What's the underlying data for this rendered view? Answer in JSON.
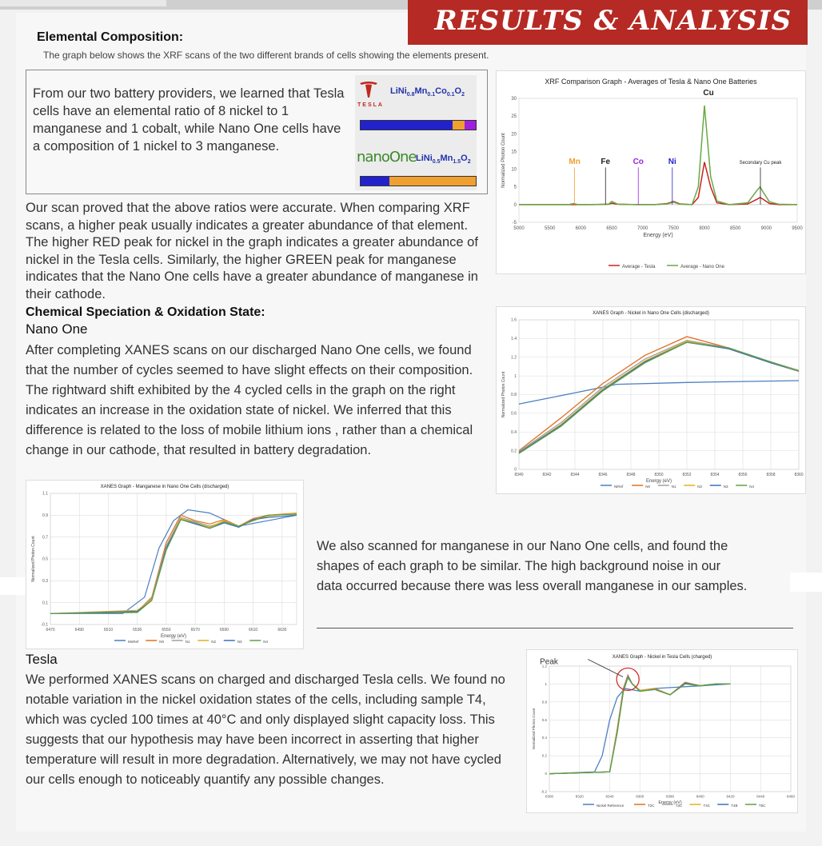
{
  "header": {
    "title": "RESULTS & ANALYSIS"
  },
  "section1": {
    "heading": "Elemental Composition:",
    "caption": "The graph below shows the XRF scans of the two different brands of cells showing the elements present.",
    "box_text": "From our two battery providers, we learned that Tesla  cells have an elemental  ratio of 8 nickel to 1 manganese and 1 cobalt, while Nano One cells have a composition of 1 nickel to 3 manganese.",
    "tesla_label": "TESLA",
    "nano_label": "nanoOne",
    "tesla_formula": {
      "a": "LiNi",
      "s1": "0.8",
      "b": "Mn",
      "s2": "0.1",
      "c": "Co",
      "s3": "0.1",
      "d": "O",
      "s4": "2"
    },
    "nano_formula": {
      "a": "LiNi",
      "s1": "0.5",
      "b": "Mn",
      "s2": "1.5",
      "d": "O",
      "s4": "2"
    },
    "tesla_bar": {
      "ni": 0.8,
      "mn": 0.1,
      "co": 0.1
    },
    "nano_bar": {
      "ni": 0.25,
      "mn": 0.75
    },
    "colors": {
      "ni": "#2222cc",
      "mn": "#f0a030",
      "co": "#a020e0",
      "red": "#b52a24"
    },
    "paragraph": "Our scan proved that the above ratios were accurate. When comparing XRF scans, a higher peak usually indicates a greater abundance of that element. The higher RED peak for nickel in the graph indicates a greater abundance of nickel in the Tesla cells. Similarly, the higher GREEN peak for manganese indicates that the Nano One cells have a greater abundance of manganese in their cathode."
  },
  "section2": {
    "heading": "Chemical Speciation & Oxidation State:",
    "subheading": "Nano One",
    "paragraph": "After completing XANES scans on our discharged Nano One cells, we found that the number of cycles seemed to have slight effects on their composition.  The rightward shift exhibited by the 4 cycled cells in the graph on the right indicates an increase in the oxidation state of nickel. We inferred that this difference is related to the loss of mobile lithium ions , rather than a chemical change in our cathode, that resulted in battery degradation.",
    "manganese_text": "We also scanned for manganese in our Nano One cells, and found the shapes of each graph to be similar. The high background noise in our data occurred because there was less overall manganese in our samples."
  },
  "section3": {
    "heading": "Tesla",
    "paragraph": "We performed XANES scans on charged and discharged Tesla cells.  We found no notable variation in the nickel oxidation states of the cells, including sample T4, which was cycled 100 times at 40°C and only displayed slight capacity loss. This suggests that our hypothesis may have been incorrect in asserting that higher temperature will result in more degradation. Alternatively, we may not have cycled our cells enough to noticeably quantify any possible changes."
  },
  "chart_data": [
    {
      "type": "line",
      "title": "XRF Comparison Graph - Averages of Tesla & Nano One Batteries",
      "xlabel": "Energy (eV)",
      "ylabel": "Normalized Photon Count",
      "xlim": [
        5000,
        9500
      ],
      "ylim": [
        -5,
        30
      ],
      "xticks": [
        5000,
        5500,
        6000,
        6500,
        7000,
        7500,
        8000,
        8500,
        9000,
        9500
      ],
      "yticks": [
        -5,
        0,
        5,
        10,
        15,
        20,
        25,
        30
      ],
      "grid": false,
      "legend_position": "bottom",
      "series": [
        {
          "name": "Average - Tesla",
          "color": "#cc2222",
          "x": [
            5000,
            5800,
            6200,
            6450,
            6500,
            6600,
            6900,
            7200,
            7400,
            7500,
            7600,
            7800,
            7900,
            8000,
            8100,
            8200,
            8400,
            8700,
            8850,
            8900,
            8950,
            9050,
            9200,
            9500
          ],
          "y": [
            0,
            0,
            0,
            0.1,
            0.4,
            0.1,
            0,
            0,
            0.3,
            0.9,
            0.2,
            0,
            2,
            12,
            5,
            0.5,
            0,
            0.2,
            1.5,
            2,
            1.5,
            0.3,
            0,
            0
          ]
        },
        {
          "name": "Average - Nano One",
          "color": "#66aa44",
          "x": [
            5000,
            5800,
            5890,
            5950,
            6100,
            6450,
            6500,
            6600,
            6900,
            7200,
            7400,
            7500,
            7600,
            7800,
            7900,
            8000,
            8100,
            8200,
            8400,
            8700,
            8850,
            8900,
            8950,
            9050,
            9200,
            9500
          ],
          "y": [
            0,
            0,
            0.3,
            0,
            0,
            0.1,
            0.9,
            0.1,
            0,
            0,
            0.2,
            0.7,
            0.1,
            0,
            5,
            28,
            8,
            1,
            0,
            0.5,
            4,
            5,
            3.5,
            0.8,
            0.1,
            0
          ]
        }
      ],
      "annotations": [
        {
          "label": "Mn",
          "x": 5900,
          "color": "#f0a030"
        },
        {
          "label": "Fe",
          "x": 6400,
          "color": "#222222"
        },
        {
          "label": "Co",
          "x": 6930,
          "color": "#a020e0"
        },
        {
          "label": "Ni",
          "x": 7480,
          "color": "#2222cc"
        },
        {
          "label": "Cu",
          "x": 8040,
          "color": "#222222"
        },
        {
          "label": "Secondary Cu peak",
          "x": 8905,
          "color": "#222222"
        }
      ]
    },
    {
      "type": "line",
      "title": "XANES Graph - Nickel in Nano One Cells (discharged)",
      "xlabel": "Energy (eV)",
      "ylabel": "Normalized Photon Count",
      "xlim": [
        8340,
        8360
      ],
      "ylim": [
        0,
        1.6
      ],
      "xticks": [
        8340,
        8342,
        8344,
        8346,
        8348,
        8350,
        8352,
        8354,
        8356,
        8358,
        8360
      ],
      "yticks": [
        0,
        0.2,
        0.4,
        0.6,
        0.8,
        1.0,
        1.2,
        1.4,
        1.6
      ],
      "grid": true,
      "legend_position": "bottom",
      "series": [
        {
          "name": "NiRef",
          "color": "#4a7fc1",
          "x": [
            8340,
            8344,
            8347,
            8352,
            8356,
            8360
          ],
          "y": [
            0.7,
            0.82,
            0.91,
            0.93,
            0.94,
            0.95
          ]
        },
        {
          "name": "N0",
          "color": "#e07020",
          "x": [
            8340,
            8343,
            8346,
            8349,
            8352,
            8355,
            8358,
            8360
          ],
          "y": [
            0.2,
            0.55,
            0.92,
            1.22,
            1.42,
            1.3,
            1.14,
            1.05
          ]
        },
        {
          "name": "N1",
          "color": "#a0a0a0",
          "x": [
            8340,
            8343,
            8346,
            8349,
            8352,
            8355,
            8358,
            8360
          ],
          "y": [
            0.19,
            0.5,
            0.88,
            1.18,
            1.38,
            1.3,
            1.15,
            1.06
          ]
        },
        {
          "name": "N2",
          "color": "#e0b020",
          "x": [
            8340,
            8343,
            8346,
            8349,
            8352,
            8355,
            8358,
            8360
          ],
          "y": [
            0.18,
            0.48,
            0.86,
            1.16,
            1.37,
            1.29,
            1.14,
            1.05
          ]
        },
        {
          "name": "N3",
          "color": "#3a70c0",
          "x": [
            8340,
            8343,
            8346,
            8349,
            8352,
            8355,
            8358,
            8360
          ],
          "y": [
            0.18,
            0.47,
            0.85,
            1.15,
            1.36,
            1.29,
            1.14,
            1.05
          ]
        },
        {
          "name": "N4",
          "color": "#60a040",
          "x": [
            8340,
            8343,
            8346,
            8349,
            8352,
            8355,
            8358,
            8360
          ],
          "y": [
            0.17,
            0.46,
            0.84,
            1.14,
            1.36,
            1.3,
            1.15,
            1.05
          ]
        }
      ]
    },
    {
      "type": "line",
      "title": "XANES Graph - Manganese in Nano One Cells (discharged)",
      "xlabel": "Energy (eV)",
      "ylabel": "Normalized Photon Count",
      "xlim": [
        6470,
        6640
      ],
      "ylim": [
        -0.1,
        1.1
      ],
      "xticks": [
        6470,
        6490,
        6510,
        6530,
        6550,
        6570,
        6590,
        6610,
        6630
      ],
      "yticks": [
        -0.1,
        0.1,
        0.3,
        0.5,
        0.7,
        0.9,
        1.1
      ],
      "grid": true,
      "legend_position": "bottom",
      "series": [
        {
          "name": "MnRef",
          "color": "#4a7fc1",
          "x": [
            6470,
            6520,
            6535,
            6545,
            6555,
            6565,
            6580,
            6600,
            6620,
            6640
          ],
          "y": [
            0,
            0,
            0.15,
            0.6,
            0.85,
            0.95,
            0.92,
            0.8,
            0.85,
            0.9
          ]
        },
        {
          "name": "N0",
          "color": "#e07020",
          "x": [
            6470,
            6530,
            6540,
            6550,
            6560,
            6570,
            6580,
            6590,
            6600,
            6610,
            6620,
            6640
          ],
          "y": [
            0,
            0.02,
            0.15,
            0.65,
            0.9,
            0.85,
            0.82,
            0.86,
            0.8,
            0.87,
            0.9,
            0.92
          ]
        },
        {
          "name": "N1",
          "color": "#a0a0a0",
          "x": [
            6470,
            6530,
            6540,
            6550,
            6560,
            6570,
            6580,
            6590,
            6600,
            6610,
            6620,
            6640
          ],
          "y": [
            0,
            0.02,
            0.14,
            0.62,
            0.88,
            0.84,
            0.8,
            0.84,
            0.79,
            0.86,
            0.9,
            0.91
          ]
        },
        {
          "name": "N2",
          "color": "#e0b020",
          "x": [
            6470,
            6530,
            6540,
            6550,
            6560,
            6570,
            6580,
            6590,
            6600,
            6610,
            6620,
            6640
          ],
          "y": [
            0,
            0.03,
            0.13,
            0.6,
            0.87,
            0.83,
            0.79,
            0.85,
            0.8,
            0.85,
            0.89,
            0.92
          ]
        },
        {
          "name": "N3",
          "color": "#3a70c0",
          "x": [
            6470,
            6530,
            6540,
            6550,
            6560,
            6570,
            6580,
            6590,
            6600,
            6610,
            6620,
            6640
          ],
          "y": [
            0,
            0.02,
            0.12,
            0.6,
            0.86,
            0.82,
            0.78,
            0.83,
            0.79,
            0.86,
            0.88,
            0.9
          ]
        },
        {
          "name": "N4",
          "color": "#60a040",
          "x": [
            6470,
            6530,
            6540,
            6550,
            6560,
            6570,
            6580,
            6590,
            6600,
            6610,
            6620,
            6640
          ],
          "y": [
            0,
            0.01,
            0.12,
            0.58,
            0.86,
            0.83,
            0.78,
            0.84,
            0.8,
            0.85,
            0.9,
            0.91
          ]
        }
      ]
    },
    {
      "type": "line",
      "title": "XANES Graph - Nickel in Tesla Cells (charged)",
      "xlabel": "Energy (eV)",
      "ylabel": "Normalized Photon Count",
      "xlim": [
        8300,
        8460
      ],
      "ylim": [
        -0.2,
        1.2
      ],
      "xticks": [
        8300,
        8320,
        8340,
        8360,
        8380,
        8400,
        8420,
        8440,
        8460
      ],
      "yticks": [
        -0.2,
        0,
        0.2,
        0.4,
        0.6,
        0.8,
        1,
        1.2
      ],
      "grid": true,
      "legend_position": "bottom",
      "annotations": [
        {
          "label": "Peak",
          "x": 8352,
          "y": 1.08
        }
      ],
      "series": [
        {
          "name": "Nickel Reference",
          "color": "#4a7fc1",
          "x": [
            8300,
            8330,
            8335,
            8340,
            8345,
            8350,
            8360,
            8370,
            8380,
            8400,
            8420
          ],
          "y": [
            0,
            0.02,
            0.2,
            0.6,
            0.85,
            0.95,
            0.92,
            0.95,
            0.96,
            0.98,
            1.0
          ]
        },
        {
          "name": "T2C",
          "color": "#e07020",
          "x": [
            8300,
            8340,
            8345,
            8349,
            8352,
            8355,
            8360,
            8370,
            8380,
            8390,
            8400,
            8410,
            8420
          ],
          "y": [
            0,
            0.02,
            0.5,
            0.95,
            1.1,
            1.0,
            0.93,
            0.95,
            0.88,
            1.02,
            0.98,
            1.0,
            1.0
          ]
        },
        {
          "name": "T3C",
          "color": "#a0a0a0",
          "x": [
            8300,
            8340,
            8345,
            8349,
            8352,
            8355,
            8360,
            8370,
            8380,
            8390,
            8400,
            8410,
            8420
          ],
          "y": [
            0,
            0.02,
            0.48,
            0.93,
            1.09,
            1.0,
            0.93,
            0.94,
            0.88,
            1.01,
            0.98,
            1.0,
            1.0
          ]
        },
        {
          "name": "T4C",
          "color": "#e0b020",
          "x": [
            8300,
            8340,
            8345,
            8349,
            8352,
            8355,
            8360,
            8370,
            8380,
            8390,
            8400,
            8410,
            8420
          ],
          "y": [
            0,
            0.02,
            0.47,
            0.92,
            1.08,
            1.0,
            0.93,
            0.94,
            0.88,
            1.01,
            0.98,
            1.0,
            1.0
          ]
        },
        {
          "name": "T4B",
          "color": "#3a70c0",
          "x": [
            8300,
            8340,
            8345,
            8349,
            8352,
            8355,
            8360,
            8370,
            8380,
            8390,
            8400,
            8410,
            8420
          ],
          "y": [
            0,
            0.02,
            0.46,
            0.92,
            1.08,
            1.0,
            0.92,
            0.94,
            0.88,
            1.01,
            0.98,
            1.0,
            1.0
          ]
        },
        {
          "name": "T5C",
          "color": "#60a040",
          "x": [
            8300,
            8340,
            8345,
            8349,
            8352,
            8355,
            8360,
            8370,
            8380,
            8390,
            8400,
            8410,
            8420
          ],
          "y": [
            0,
            0.02,
            0.46,
            0.91,
            1.07,
            1.0,
            0.92,
            0.94,
            0.88,
            1.0,
            0.98,
            1.0,
            1.0
          ]
        }
      ]
    }
  ]
}
